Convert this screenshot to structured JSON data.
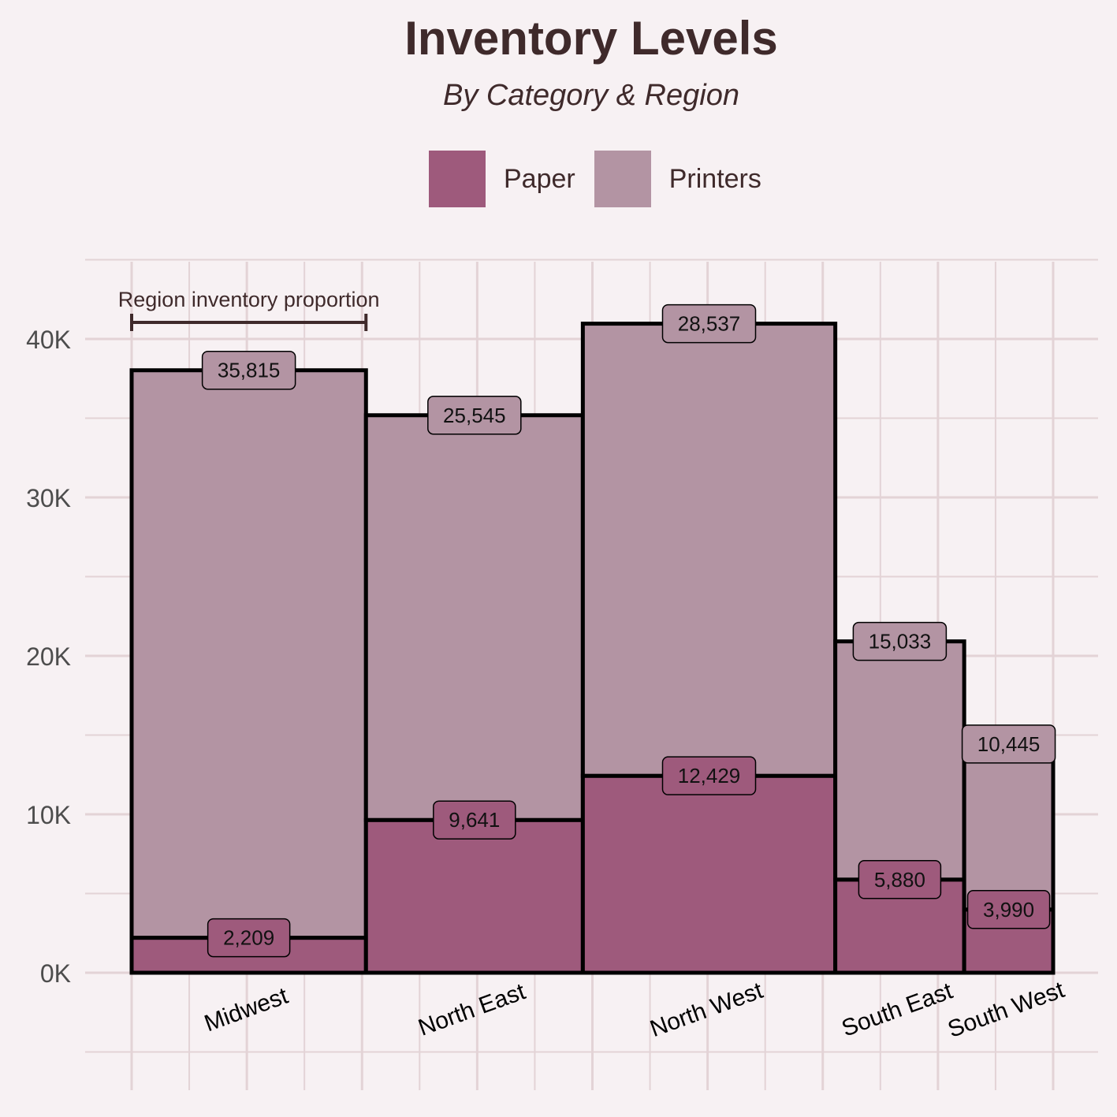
{
  "chart_data": {
    "type": "bar",
    "variant": "stacked-marimekko",
    "title": "Inventory Levels",
    "subtitle": "By Category & Region",
    "categories": [
      "Midwest",
      "North East",
      "North West",
      "South East",
      "South West"
    ],
    "series": [
      {
        "name": "Paper",
        "color": "#9e5a7c",
        "values": [
          2209,
          9641,
          12429,
          5880,
          3990
        ]
      },
      {
        "name": "Printers",
        "color": "#b394a3",
        "values": [
          35815,
          25545,
          28537,
          15033,
          10445
        ]
      }
    ],
    "yticks": [
      "0K",
      "10K",
      "20K",
      "30K",
      "40K"
    ],
    "ylim": [
      -5000,
      45000
    ],
    "annotation": "Region inventory proportion",
    "legend_position": "top",
    "grid": true
  }
}
